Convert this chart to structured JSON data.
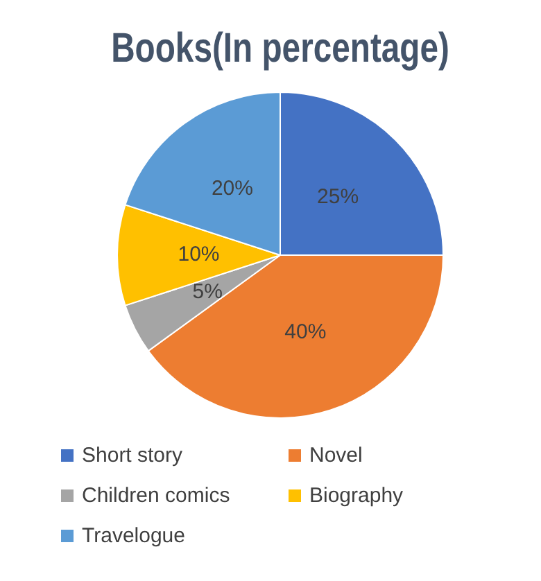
{
  "chart_data": {
    "type": "pie",
    "title": "Books(In percentage)",
    "categories": [
      "Short story",
      "Novel",
      "Children comics",
      "Biography",
      "Travelogue"
    ],
    "values": [
      25,
      40,
      5,
      10,
      20
    ],
    "value_labels": [
      "25%",
      "40%",
      "5%",
      "10%",
      "20%"
    ],
    "colors": [
      "#4472c4",
      "#ed7d31",
      "#a5a5a5",
      "#ffc000",
      "#5b9bd5"
    ],
    "legend": "bottom"
  }
}
